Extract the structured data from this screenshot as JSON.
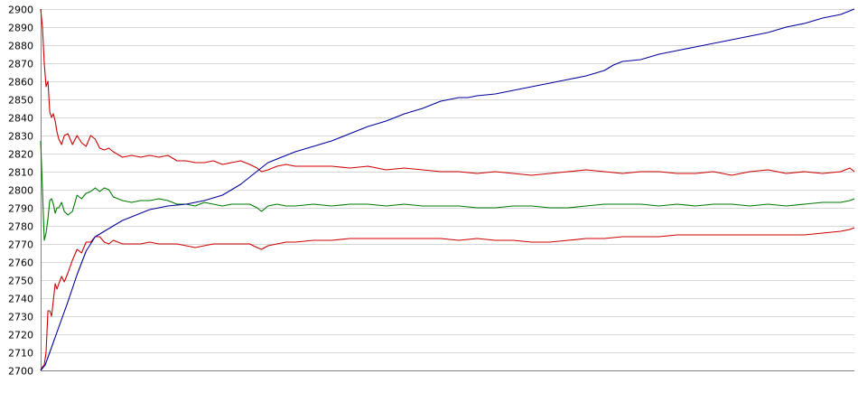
{
  "chart_data": {
    "type": "line",
    "title": "",
    "xlabel": "",
    "ylabel": "",
    "ylim": [
      2700,
      2900
    ],
    "y_ticks": [
      2700,
      2710,
      2720,
      2730,
      2740,
      2750,
      2760,
      2770,
      2780,
      2790,
      2800,
      2810,
      2820,
      2830,
      2840,
      2850,
      2860,
      2870,
      2880,
      2890,
      2900
    ],
    "x_range": [
      0,
      895
    ],
    "grid": true,
    "legend": "none",
    "series": [
      {
        "color": "#cc0000",
        "x": [
          0,
          2,
          4,
          6,
          8,
          10,
          12,
          14,
          16,
          18,
          20,
          23,
          26,
          30,
          35,
          40,
          45,
          50,
          55,
          60,
          65,
          70,
          75,
          80,
          90,
          100,
          110,
          120,
          130,
          140,
          150,
          160,
          170,
          180,
          190,
          200,
          210,
          220,
          230,
          238,
          243,
          250,
          260,
          270,
          280,
          300,
          320,
          340,
          360,
          380,
          400,
          420,
          440,
          460,
          480,
          500,
          520,
          540,
          560,
          580,
          600,
          620,
          640,
          660,
          680,
          700,
          720,
          740,
          760,
          780,
          800,
          820,
          840,
          860,
          880,
          890,
          895
        ],
        "values": [
          2900,
          2890,
          2870,
          2857,
          2860,
          2843,
          2840,
          2842,
          2838,
          2832,
          2828,
          2825,
          2830,
          2831,
          2825,
          2830,
          2826,
          2824,
          2830,
          2828,
          2823,
          2822,
          2823,
          2821,
          2818,
          2819,
          2818,
          2819,
          2818,
          2819,
          2816,
          2816,
          2815,
          2815,
          2816,
          2814,
          2815,
          2816,
          2814,
          2812,
          2810,
          2811,
          2813,
          2814,
          2813,
          2813,
          2813,
          2812,
          2813,
          2811,
          2812,
          2811,
          2810,
          2810,
          2809,
          2810,
          2809,
          2808,
          2809,
          2810,
          2811,
          2810,
          2809,
          2810,
          2810,
          2809,
          2809,
          2810,
          2808,
          2810,
          2811,
          2809,
          2810,
          2809,
          2810,
          2812,
          2810
        ]
      },
      {
        "color": "#007700",
        "x": [
          0,
          2,
          4,
          6,
          8,
          10,
          12,
          14,
          16,
          18,
          20,
          23,
          26,
          30,
          35,
          40,
          45,
          50,
          55,
          60,
          65,
          70,
          75,
          80,
          90,
          100,
          110,
          120,
          130,
          140,
          150,
          160,
          170,
          180,
          190,
          200,
          210,
          220,
          230,
          238,
          243,
          250,
          260,
          270,
          280,
          300,
          320,
          340,
          360,
          380,
          400,
          420,
          440,
          460,
          480,
          500,
          520,
          540,
          560,
          580,
          600,
          620,
          640,
          660,
          680,
          700,
          720,
          740,
          760,
          780,
          800,
          820,
          840,
          860,
          880,
          890,
          895
        ],
        "values": [
          2827,
          2800,
          2772,
          2776,
          2784,
          2794,
          2795,
          2792,
          2787,
          2790,
          2790,
          2793,
          2788,
          2786,
          2788,
          2797,
          2795,
          2798,
          2799,
          2801,
          2799,
          2801,
          2800,
          2796,
          2794,
          2793,
          2794,
          2794,
          2795,
          2794,
          2792,
          2792,
          2791,
          2793,
          2792,
          2791,
          2792,
          2792,
          2792,
          2790,
          2788,
          2791,
          2792,
          2791,
          2791,
          2792,
          2791,
          2792,
          2792,
          2791,
          2792,
          2791,
          2791,
          2791,
          2790,
          2790,
          2791,
          2791,
          2790,
          2790,
          2791,
          2792,
          2792,
          2792,
          2791,
          2792,
          2791,
          2792,
          2792,
          2791,
          2792,
          2791,
          2792,
          2793,
          2793,
          2794,
          2795
        ]
      },
      {
        "color": "#cc0000",
        "x": [
          0,
          2,
          4,
          6,
          8,
          10,
          12,
          14,
          16,
          18,
          20,
          23,
          26,
          30,
          35,
          40,
          45,
          50,
          55,
          60,
          65,
          70,
          75,
          80,
          90,
          100,
          110,
          120,
          130,
          140,
          150,
          160,
          170,
          180,
          190,
          200,
          210,
          220,
          230,
          238,
          243,
          250,
          260,
          270,
          280,
          300,
          320,
          340,
          360,
          380,
          400,
          420,
          440,
          460,
          480,
          500,
          520,
          540,
          560,
          580,
          600,
          620,
          640,
          660,
          680,
          700,
          720,
          740,
          760,
          780,
          800,
          820,
          840,
          860,
          880,
          890,
          895
        ],
        "values": [
          2700,
          2702,
          2703,
          2710,
          2733,
          2733,
          2730,
          2739,
          2748,
          2745,
          2748,
          2752,
          2749,
          2754,
          2761,
          2767,
          2765,
          2771,
          2771,
          2774,
          2774,
          2771,
          2770,
          2772,
          2770,
          2770,
          2770,
          2771,
          2770,
          2770,
          2770,
          2769,
          2768,
          2769,
          2770,
          2770,
          2770,
          2770,
          2770,
          2768,
          2767,
          2769,
          2770,
          2771,
          2771,
          2772,
          2772,
          2773,
          2773,
          2773,
          2773,
          2773,
          2773,
          2772,
          2773,
          2772,
          2772,
          2771,
          2771,
          2772,
          2773,
          2773,
          2774,
          2774,
          2774,
          2775,
          2775,
          2775,
          2775,
          2775,
          2775,
          2775,
          2775,
          2776,
          2777,
          2778,
          2779
        ]
      },
      {
        "color": "#000099",
        "x": [
          0,
          5,
          10,
          20,
          30,
          40,
          50,
          60,
          70,
          80,
          90,
          100,
          110,
          120,
          140,
          160,
          180,
          200,
          210,
          220,
          230,
          240,
          250,
          260,
          270,
          280,
          300,
          320,
          340,
          360,
          380,
          400,
          420,
          440,
          460,
          470,
          480,
          500,
          520,
          540,
          560,
          580,
          600,
          620,
          630,
          640,
          660,
          680,
          700,
          720,
          740,
          760,
          780,
          800,
          820,
          840,
          860,
          880,
          895
        ],
        "values": [
          2700,
          2703,
          2710,
          2724,
          2738,
          2753,
          2766,
          2774,
          2777,
          2780,
          2783,
          2785,
          2787,
          2789,
          2791,
          2792,
          2794,
          2797,
          2800,
          2803,
          2807,
          2811,
          2815,
          2817,
          2819,
          2821,
          2824,
          2827,
          2831,
          2835,
          2838,
          2842,
          2845,
          2849,
          2851,
          2851,
          2852,
          2853,
          2855,
          2857,
          2859,
          2861,
          2863,
          2866,
          2869,
          2871,
          2872,
          2875,
          2877,
          2879,
          2881,
          2883,
          2885,
          2887,
          2890,
          2892,
          2895,
          2897,
          2900
        ]
      }
    ]
  }
}
